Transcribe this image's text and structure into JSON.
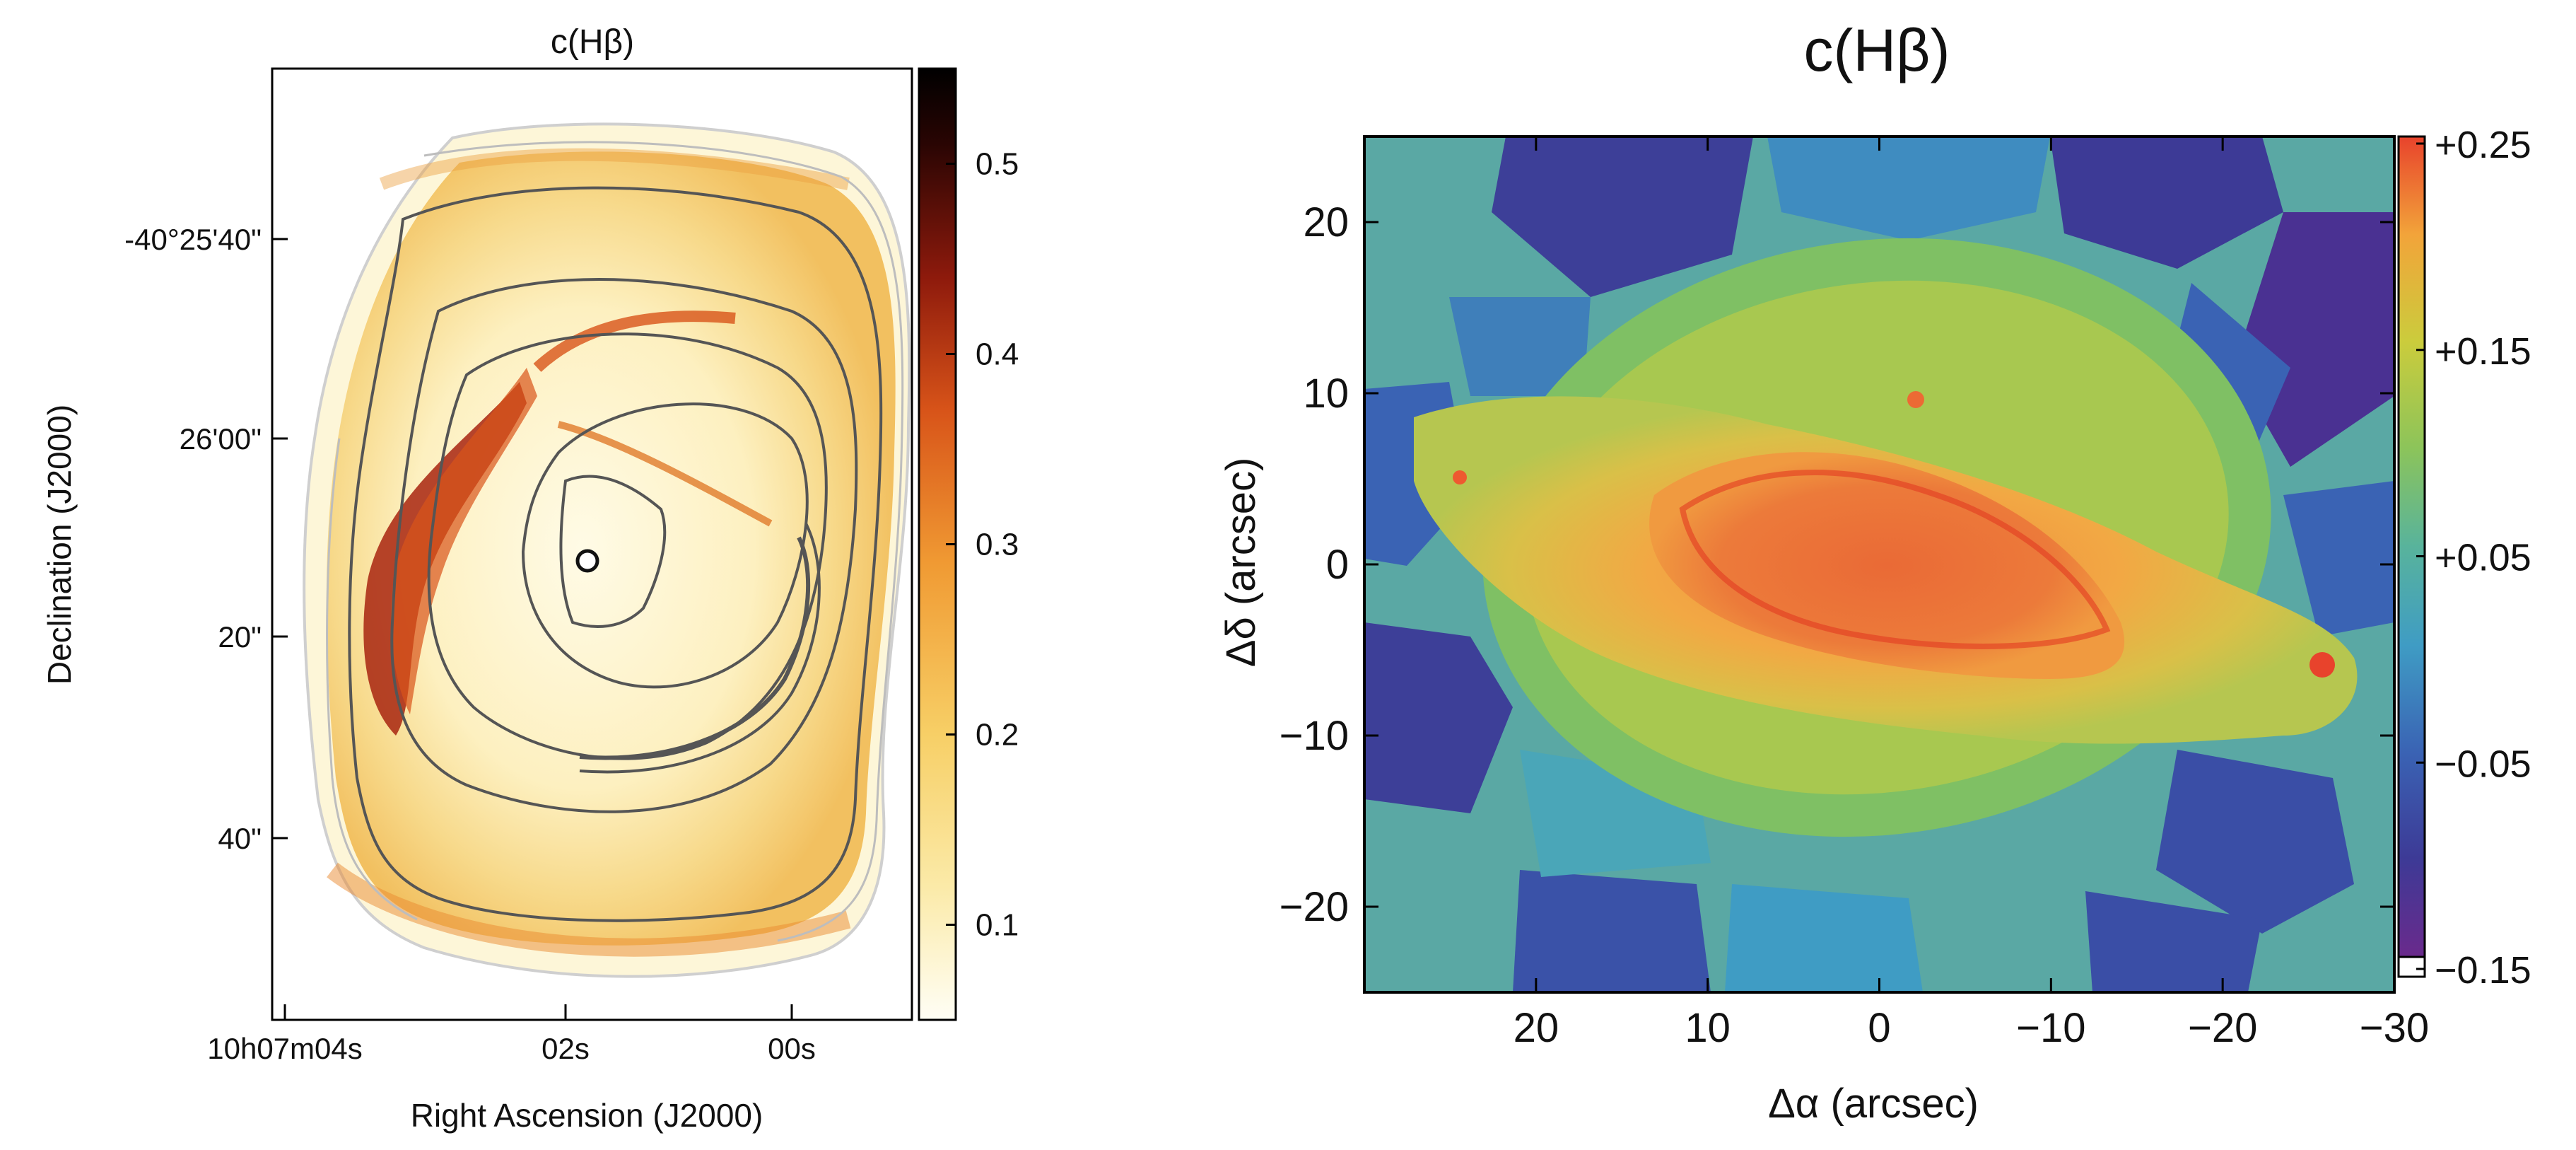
{
  "colors": {
    "hot_cmap": [
      "#fffef5",
      "#fbeaa8",
      "#f7cf66",
      "#f09a33",
      "#d85419",
      "#8e1a0c",
      "#2a0503",
      "#000000"
    ],
    "jet_cmap": [
      "#6a2a8c",
      "#3d3a96",
      "#3a63b4",
      "#3f9cc4",
      "#58b39c",
      "#8cc45a",
      "#cbcc3c",
      "#f2a43a",
      "#e8432c"
    ],
    "contour_dark": "#555555",
    "contour_light": "#b8b8b8"
  },
  "chart_data": [
    {
      "type": "heatmap",
      "title": "c(Hβ)",
      "xlabel": "Right Ascension (J2000)",
      "ylabel": "Declination (J2000)",
      "x_tick_labels": [
        "10h07m04s",
        "02s",
        "00s"
      ],
      "y_tick_labels": [
        "-40°25'40\"",
        "26'00\"",
        "20\"",
        "40\""
      ],
      "colorbar": {
        "range": [
          0.05,
          0.55
        ],
        "ticks": [
          0.1,
          0.2,
          0.3,
          0.4,
          0.5
        ],
        "tick_labels": [
          "0.1",
          "0.2",
          "0.3",
          "0.4",
          "0.5"
        ]
      }
    },
    {
      "type": "heatmap",
      "title": "c(Hβ)",
      "xlabel": "Δα (arcsec)",
      "ylabel": "Δδ (arcsec)",
      "xlim": [
        30,
        -30
      ],
      "ylim": [
        -25,
        25
      ],
      "x_ticks": [
        20,
        10,
        0,
        -10,
        -20,
        -30
      ],
      "x_tick_labels": [
        "20",
        "10",
        "0",
        "−10",
        "−20",
        "−30"
      ],
      "y_ticks": [
        20,
        10,
        0,
        -10,
        -20
      ],
      "y_tick_labels": [
        "20",
        "10",
        "0",
        "−10",
        "−20"
      ],
      "colorbar": {
        "range": [
          -0.15,
          0.25
        ],
        "ticks": [
          0.25,
          0.15,
          0.05,
          -0.05,
          -0.15
        ],
        "tick_labels": [
          "+0.25",
          "+0.15",
          "+0.05",
          "−0.05",
          "−0.15"
        ]
      }
    }
  ]
}
